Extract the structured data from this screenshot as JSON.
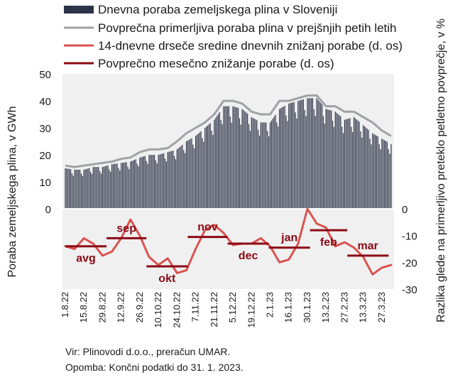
{
  "chart_data": {
    "type": "bar+line",
    "legend": [
      {
        "label": "Dnevna poraba zemeljskega plina v Sloveniji",
        "kind": "bar",
        "color": "#2e3447"
      },
      {
        "label": "Povprečna primerljiva poraba plina v prejšnjih petih letih",
        "kind": "line",
        "color": "#a0a2a6"
      },
      {
        "label": "14-dnevne drseče sredine dnevnih znižanj porabe (d. os)",
        "kind": "line",
        "color": "#d9534f"
      },
      {
        "label": "Povprečno mesečno znižanje porabe (d. os)",
        "kind": "line",
        "color": "#8b0a14"
      }
    ],
    "ylabel_left": "Poraba zemeljskega plina, v GWh",
    "ylabel_right": "Razlika glede na primerljivo preteklo petletno povprečje, v %",
    "y_left_ticks": [
      "50",
      "40",
      "30",
      "20",
      "10",
      "0"
    ],
    "y_left_range": [
      0,
      50
    ],
    "y_right_ticks": [
      "0",
      "-10",
      "-20",
      "-30"
    ],
    "y_right_range": [
      -30,
      0
    ],
    "x_tick_labels": [
      "1.8.22",
      "15.8.22",
      "29.8.22",
      "12.9.22",
      "26.9.22",
      "10.10.22",
      "24.10.22",
      "7.11.22",
      "21.11.22",
      "5.12.22",
      "19.12.22",
      "2.1.23",
      "16.1.23",
      "30.1.23",
      "13.2.23",
      "27.2.23",
      "13.3.23",
      "27.3.23"
    ],
    "x_range": [
      "1.8.22",
      "3.4.23"
    ],
    "daily_consumption_points": [
      [
        "1.8.22",
        15
      ],
      [
        "8.8.22",
        14.5
      ],
      [
        "15.8.22",
        14.5
      ],
      [
        "22.8.22",
        15.5
      ],
      [
        "29.8.22",
        15.5
      ],
      [
        "5.9.22",
        16.5
      ],
      [
        "12.9.22",
        17
      ],
      [
        "19.9.22",
        17.5
      ],
      [
        "26.9.22",
        19
      ],
      [
        "3.10.22",
        20
      ],
      [
        "10.10.22",
        20
      ],
      [
        "17.10.22",
        21
      ],
      [
        "24.10.22",
        22
      ],
      [
        "31.10.22",
        25
      ],
      [
        "7.11.22",
        27
      ],
      [
        "14.11.22",
        30
      ],
      [
        "21.11.22",
        33
      ],
      [
        "28.11.22",
        38
      ],
      [
        "5.12.22",
        38
      ],
      [
        "12.12.22",
        37
      ],
      [
        "19.12.22",
        34
      ],
      [
        "26.12.22",
        32
      ],
      [
        "2.1.23",
        32
      ],
      [
        "9.1.23",
        37
      ],
      [
        "16.1.23",
        39
      ],
      [
        "23.1.23",
        40
      ],
      [
        "30.1.23",
        41
      ],
      [
        "6.2.23",
        41
      ],
      [
        "13.2.23",
        37
      ],
      [
        "20.2.23",
        36
      ],
      [
        "27.2.23",
        33
      ],
      [
        "6.3.23",
        34
      ],
      [
        "13.3.23",
        31
      ],
      [
        "20.3.23",
        28
      ],
      [
        "27.3.23",
        26
      ],
      [
        "3.4.23",
        24
      ]
    ],
    "five_year_average_points": [
      [
        "1.8.22",
        16
      ],
      [
        "8.8.22",
        15.5
      ],
      [
        "15.8.22",
        16
      ],
      [
        "22.8.22",
        16.5
      ],
      [
        "29.8.22",
        17
      ],
      [
        "5.9.22",
        17.5
      ],
      [
        "12.9.22",
        18.5
      ],
      [
        "19.9.22",
        19
      ],
      [
        "26.9.22",
        21
      ],
      [
        "3.10.22",
        22
      ],
      [
        "10.10.22",
        22
      ],
      [
        "17.10.22",
        22.5
      ],
      [
        "24.10.22",
        25
      ],
      [
        "31.10.22",
        28
      ],
      [
        "7.11.22",
        30
      ],
      [
        "14.11.22",
        32
      ],
      [
        "21.11.22",
        35
      ],
      [
        "28.11.22",
        40
      ],
      [
        "5.12.22",
        40
      ],
      [
        "12.12.22",
        39
      ],
      [
        "19.12.22",
        36
      ],
      [
        "26.12.22",
        35
      ],
      [
        "2.1.23",
        35
      ],
      [
        "9.1.23",
        40
      ],
      [
        "16.1.23",
        40
      ],
      [
        "23.1.23",
        41
      ],
      [
        "30.1.23",
        42
      ],
      [
        "6.2.23",
        42
      ],
      [
        "13.2.23",
        38
      ],
      [
        "20.2.23",
        38
      ],
      [
        "27.2.23",
        36
      ],
      [
        "6.3.23",
        36
      ],
      [
        "13.3.23",
        34
      ],
      [
        "20.3.23",
        32
      ],
      [
        "27.3.23",
        29
      ],
      [
        "3.4.23",
        27
      ]
    ],
    "rolling_14d_reduction_points": [
      [
        "1.8.22",
        -14
      ],
      [
        "8.8.22",
        -15
      ],
      [
        "15.8.22",
        -11
      ],
      [
        "22.8.22",
        -13
      ],
      [
        "29.8.22",
        -17.5
      ],
      [
        "5.9.22",
        -16
      ],
      [
        "12.9.22",
        -11
      ],
      [
        "19.9.22",
        -4
      ],
      [
        "26.9.22",
        -10
      ],
      [
        "3.10.22",
        -18
      ],
      [
        "10.10.22",
        -21
      ],
      [
        "17.10.22",
        -18.5
      ],
      [
        "24.10.22",
        -24
      ],
      [
        "31.10.22",
        -23
      ],
      [
        "7.11.22",
        -15
      ],
      [
        "14.11.22",
        -8
      ],
      [
        "21.11.22",
        -6
      ],
      [
        "28.11.22",
        -9
      ],
      [
        "5.12.22",
        -13.5
      ],
      [
        "12.12.22",
        -13
      ],
      [
        "19.12.22",
        -13
      ],
      [
        "26.12.22",
        -11
      ],
      [
        "2.1.23",
        -14
      ],
      [
        "9.1.23",
        -20
      ],
      [
        "16.1.23",
        -19
      ],
      [
        "23.1.23",
        -13
      ],
      [
        "30.1.23",
        0
      ],
      [
        "6.2.23",
        -5.5
      ],
      [
        "13.2.23",
        -7
      ],
      [
        "20.2.23",
        -14
      ],
      [
        "27.2.23",
        -12.5
      ],
      [
        "6.3.23",
        -14.5
      ],
      [
        "13.3.23",
        -18
      ],
      [
        "20.3.23",
        -24.5
      ],
      [
        "27.3.23",
        -22
      ],
      [
        "3.4.23",
        -21
      ]
    ],
    "monthly_average_reduction": [
      {
        "month": "avg",
        "from": "1.8.22",
        "to": "31.8.22",
        "value": -14
      },
      {
        "month": "sep",
        "from": "1.9.22",
        "to": "30.9.22",
        "value": -11
      },
      {
        "month": "okt",
        "from": "1.10.22",
        "to": "31.10.22",
        "value": -21.5
      },
      {
        "month": "nov",
        "from": "1.11.22",
        "to": "30.11.22",
        "value": -10.5
      },
      {
        "month": "dec",
        "from": "1.12.22",
        "to": "31.12.22",
        "value": -13
      },
      {
        "month": "jan",
        "from": "1.1.23",
        "to": "31.1.23",
        "value": -14.5
      },
      {
        "month": "feb",
        "from": "1.2.23",
        "to": "28.2.23",
        "value": -8
      },
      {
        "month": "mar",
        "from": "1.3.23",
        "to": "31.3.23",
        "value": -17.5
      }
    ],
    "source_note": "Vir: Plinovodi d.o.o., preračun UMAR.",
    "footnote": "Opomba: Končni podatki do 31. 1. 2023."
  }
}
